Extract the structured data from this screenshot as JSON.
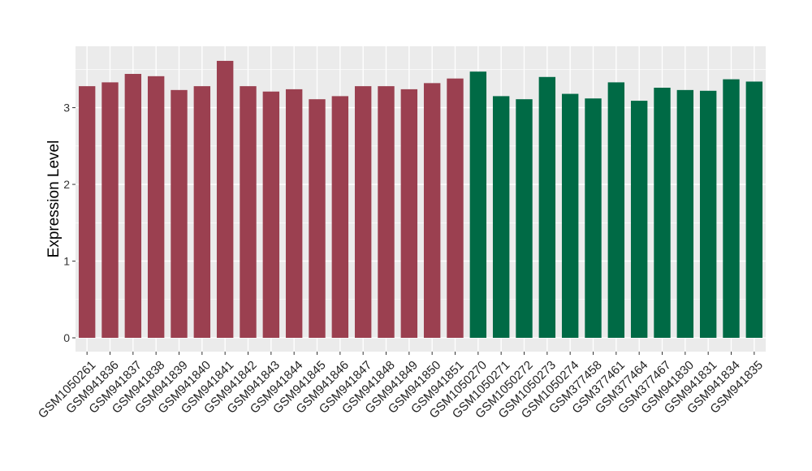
{
  "chart_data": {
    "type": "bar",
    "title": "",
    "xlabel": "",
    "ylabel": "Expression Level",
    "ylim": [
      -0.18,
      3.8
    ],
    "yticks": [
      0,
      1,
      2,
      3
    ],
    "grid": true,
    "legend": "none",
    "background_color": "#ebebeb",
    "grid_color": "#ffffff",
    "categories": [
      "GSM1050261",
      "GSM941836",
      "GSM941837",
      "GSM941838",
      "GSM941839",
      "GSM941840",
      "GSM941841",
      "GSM941842",
      "GSM941843",
      "GSM941844",
      "GSM941845",
      "GSM941846",
      "GSM941847",
      "GSM941848",
      "GSM941849",
      "GSM941850",
      "GSM941851",
      "GSM1050270",
      "GSM1050271",
      "GSM1050272",
      "GSM1050273",
      "GSM1050274",
      "GSM377458",
      "GSM377461",
      "GSM377464",
      "GSM377467",
      "GSM941830",
      "GSM941831",
      "GSM941834",
      "GSM941835"
    ],
    "values": [
      3.28,
      3.33,
      3.44,
      3.41,
      3.23,
      3.28,
      3.61,
      3.28,
      3.21,
      3.24,
      3.11,
      3.15,
      3.28,
      3.28,
      3.24,
      3.32,
      3.38,
      3.47,
      3.15,
      3.11,
      3.4,
      3.18,
      3.12,
      3.33,
      3.09,
      3.26,
      3.23,
      3.22,
      3.37,
      3.34
    ],
    "bar_colors": [
      "#9b4050",
      "#9b4050",
      "#9b4050",
      "#9b4050",
      "#9b4050",
      "#9b4050",
      "#9b4050",
      "#9b4050",
      "#9b4050",
      "#9b4050",
      "#9b4050",
      "#9b4050",
      "#9b4050",
      "#9b4050",
      "#9b4050",
      "#9b4050",
      "#9b4050",
      "#006a45",
      "#006a45",
      "#006a45",
      "#006a45",
      "#006a45",
      "#006a45",
      "#006a45",
      "#006a45",
      "#006a45",
      "#006a45",
      "#006a45",
      "#006a45",
      "#006a45"
    ]
  }
}
